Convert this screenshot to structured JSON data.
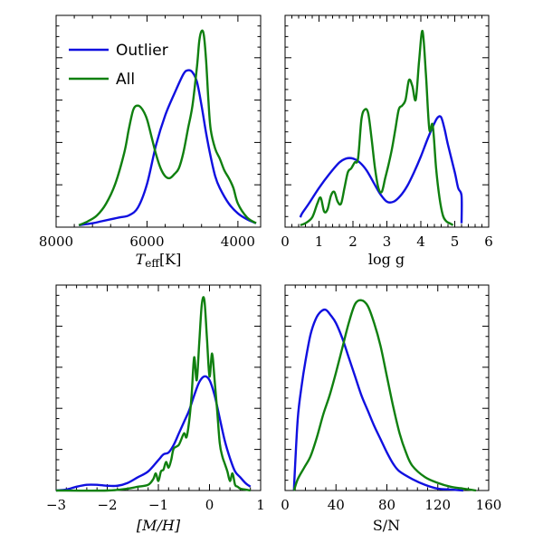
{
  "colors": {
    "outlier": "#1010e0",
    "all": "#108010"
  },
  "legend": [
    {
      "label": "Outlier",
      "color": "#1010e0"
    },
    {
      "label": "All",
      "color": "#108010"
    }
  ],
  "chart_data": [
    {
      "id": "teff",
      "type": "line",
      "xlabel_main": "T",
      "xlabel_sub": "eff",
      "xlabel_unit": "[K]",
      "xlim": [
        8000,
        3500
      ],
      "ylim": [
        0,
        1.08
      ],
      "xticks": [
        8000,
        6000,
        4000
      ],
      "xtick_labels": [
        "8000",
        "6000",
        "4000"
      ],
      "series": [
        {
          "name": "Outlier",
          "x": [
            7500,
            7200,
            7000,
            6800,
            6600,
            6400,
            6200,
            6000,
            5800,
            5600,
            5400,
            5200,
            5100,
            5000,
            4900,
            4800,
            4700,
            4600,
            4500,
            4400,
            4200,
            4000,
            3800,
            3600
          ],
          "y": [
            0.01,
            0.02,
            0.03,
            0.04,
            0.05,
            0.06,
            0.1,
            0.22,
            0.42,
            0.57,
            0.68,
            0.78,
            0.8,
            0.79,
            0.74,
            0.62,
            0.48,
            0.36,
            0.26,
            0.2,
            0.12,
            0.07,
            0.04,
            0.02
          ]
        },
        {
          "name": "All",
          "x": [
            7500,
            7300,
            7100,
            6900,
            6700,
            6500,
            6400,
            6300,
            6200,
            6100,
            6000,
            5900,
            5800,
            5700,
            5600,
            5500,
            5400,
            5300,
            5200,
            5100,
            5000,
            4900,
            4850,
            4800,
            4750,
            4700,
            4650,
            4600,
            4500,
            4400,
            4300,
            4200,
            4100,
            4000,
            3800,
            3600
          ],
          "y": [
            0.01,
            0.03,
            0.06,
            0.12,
            0.22,
            0.38,
            0.5,
            0.6,
            0.62,
            0.6,
            0.55,
            0.46,
            0.37,
            0.3,
            0.26,
            0.25,
            0.27,
            0.3,
            0.38,
            0.5,
            0.62,
            0.82,
            0.95,
            1.0,
            0.98,
            0.85,
            0.65,
            0.5,
            0.4,
            0.35,
            0.29,
            0.25,
            0.2,
            0.12,
            0.05,
            0.02
          ]
        }
      ]
    },
    {
      "id": "logg",
      "type": "line",
      "xlabel": "log g",
      "xlim": [
        0,
        6
      ],
      "ylim": [
        0,
        1.08
      ],
      "xticks": [
        0,
        1,
        2,
        3,
        4,
        5,
        6
      ],
      "xtick_labels": [
        "0",
        "1",
        "2",
        "3",
        "4",
        "5",
        "6"
      ],
      "series": [
        {
          "name": "Outlier",
          "x": [
            0.45,
            0.5,
            0.7,
            1.0,
            1.3,
            1.6,
            1.8,
            2.0,
            2.2,
            2.4,
            2.6,
            2.8,
            3.0,
            3.2,
            3.4,
            3.6,
            3.8,
            4.0,
            4.2,
            4.4,
            4.5,
            4.6,
            4.7,
            4.8,
            5.0,
            5.1,
            5.2,
            5.2
          ],
          "y": [
            0.05,
            0.07,
            0.12,
            0.2,
            0.27,
            0.33,
            0.35,
            0.35,
            0.33,
            0.29,
            0.23,
            0.17,
            0.13,
            0.13,
            0.16,
            0.21,
            0.28,
            0.36,
            0.45,
            0.53,
            0.56,
            0.56,
            0.5,
            0.42,
            0.28,
            0.2,
            0.16,
            0.02
          ]
        },
        {
          "name": "All",
          "x": [
            0.45,
            0.6,
            0.8,
            0.95,
            1.05,
            1.15,
            1.25,
            1.35,
            1.45,
            1.55,
            1.65,
            1.75,
            1.85,
            1.95,
            2.05,
            2.15,
            2.25,
            2.35,
            2.45,
            2.55,
            2.65,
            2.75,
            2.85,
            2.95,
            3.05,
            3.15,
            3.25,
            3.35,
            3.45,
            3.55,
            3.65,
            3.75,
            3.85,
            3.95,
            4.05,
            4.15,
            4.25,
            4.35,
            4.45,
            4.55,
            4.65,
            4.75,
            4.85,
            4.95
          ],
          "y": [
            0.01,
            0.02,
            0.05,
            0.12,
            0.15,
            0.08,
            0.09,
            0.16,
            0.18,
            0.13,
            0.12,
            0.2,
            0.28,
            0.3,
            0.33,
            0.35,
            0.55,
            0.6,
            0.58,
            0.45,
            0.3,
            0.2,
            0.18,
            0.25,
            0.32,
            0.4,
            0.5,
            0.6,
            0.62,
            0.65,
            0.75,
            0.72,
            0.65,
            0.85,
            1.0,
            0.78,
            0.5,
            0.52,
            0.3,
            0.15,
            0.06,
            0.03,
            0.02,
            0.01
          ]
        }
      ]
    },
    {
      "id": "mh",
      "type": "line",
      "xlabel": "[M/H]",
      "xlim": [
        -3,
        1
      ],
      "ylim": [
        0,
        1.08
      ],
      "xticks": [
        -3,
        -2,
        -1,
        0,
        1
      ],
      "xtick_labels": [
        "−3",
        "−2",
        "−1",
        "0",
        "1"
      ],
      "series": [
        {
          "name": "Outlier",
          "x": [
            -3.0,
            -2.8,
            -2.6,
            -2.4,
            -2.2,
            -2.0,
            -1.8,
            -1.6,
            -1.4,
            -1.2,
            -1.0,
            -0.9,
            -0.8,
            -0.7,
            -0.6,
            -0.5,
            -0.4,
            -0.3,
            -0.2,
            -0.1,
            0.0,
            0.1,
            0.2,
            0.3,
            0.4,
            0.5,
            0.6,
            0.7,
            0.8
          ],
          "y": [
            0.0,
            0.005,
            0.02,
            0.03,
            0.03,
            0.025,
            0.025,
            0.04,
            0.07,
            0.1,
            0.16,
            0.19,
            0.2,
            0.24,
            0.3,
            0.36,
            0.42,
            0.5,
            0.57,
            0.6,
            0.58,
            0.5,
            0.38,
            0.26,
            0.17,
            0.1,
            0.07,
            0.04,
            0.02
          ]
        },
        {
          "name": "All",
          "x": [
            -3.0,
            -2.0,
            -1.6,
            -1.4,
            -1.2,
            -1.1,
            -1.05,
            -1.0,
            -0.95,
            -0.9,
            -0.85,
            -0.8,
            -0.75,
            -0.7,
            -0.6,
            -0.5,
            -0.45,
            -0.4,
            -0.35,
            -0.3,
            -0.25,
            -0.2,
            -0.15,
            -0.1,
            -0.05,
            0.0,
            0.05,
            0.1,
            0.15,
            0.2,
            0.25,
            0.3,
            0.35,
            0.4,
            0.45,
            0.5,
            0.55,
            0.6,
            0.7,
            0.8
          ],
          "y": [
            0.0,
            0.0,
            0.01,
            0.02,
            0.03,
            0.06,
            0.09,
            0.05,
            0.1,
            0.11,
            0.15,
            0.12,
            0.16,
            0.22,
            0.24,
            0.3,
            0.28,
            0.36,
            0.5,
            0.7,
            0.58,
            0.78,
            0.98,
            1.0,
            0.8,
            0.6,
            0.72,
            0.58,
            0.42,
            0.25,
            0.18,
            0.14,
            0.1,
            0.05,
            0.09,
            0.03,
            0.02,
            0.01,
            0.005,
            0.0
          ]
        }
      ]
    },
    {
      "id": "snr",
      "type": "line",
      "xlabel": "S/N",
      "xlim": [
        0,
        160
      ],
      "ylim": [
        0,
        1.08
      ],
      "xticks": [
        0,
        40,
        80,
        120,
        160
      ],
      "xtick_labels": [
        "0",
        "40",
        "80",
        "120",
        "160"
      ],
      "series": [
        {
          "name": "Outlier",
          "x": [
            7,
            7.5,
            10,
            13,
            16,
            20,
            24,
            28,
            32,
            36,
            40,
            45,
            50,
            55,
            60,
            65,
            70,
            75,
            80,
            85,
            90,
            100,
            110,
            120,
            130,
            140
          ],
          "y": [
            0.0,
            0.08,
            0.38,
            0.55,
            0.68,
            0.82,
            0.9,
            0.94,
            0.95,
            0.92,
            0.88,
            0.8,
            0.7,
            0.6,
            0.5,
            0.42,
            0.34,
            0.27,
            0.2,
            0.14,
            0.1,
            0.06,
            0.03,
            0.01,
            0.005,
            0.0
          ]
        },
        {
          "name": "All",
          "x": [
            7,
            10,
            15,
            20,
            25,
            30,
            35,
            40,
            45,
            50,
            55,
            60,
            65,
            70,
            75,
            80,
            85,
            90,
            95,
            100,
            110,
            120,
            130,
            140,
            150
          ],
          "y": [
            0.0,
            0.06,
            0.12,
            0.18,
            0.28,
            0.4,
            0.5,
            0.62,
            0.75,
            0.88,
            0.98,
            1.0,
            0.97,
            0.88,
            0.76,
            0.6,
            0.44,
            0.3,
            0.2,
            0.13,
            0.07,
            0.04,
            0.02,
            0.01,
            0.0
          ]
        }
      ]
    }
  ]
}
